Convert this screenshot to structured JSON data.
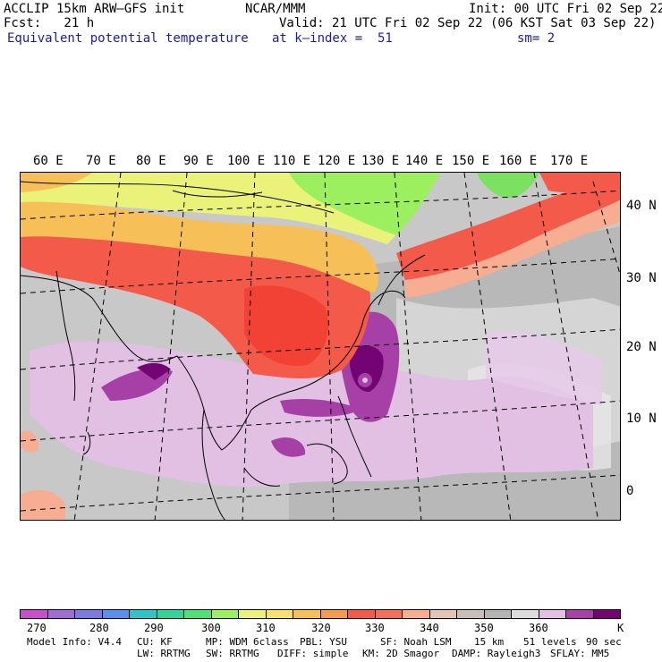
{
  "header": {
    "model": "ACCLIP 15km ARW–GFS init",
    "org": "NCAR/MMM",
    "init": "Init: 00 UTC Fri 02 Sep 22",
    "fcst": "Fcst:   21 h",
    "valid": "Valid: 21 UTC Fri 02 Sep 22 (06 KST Sat 03 Sep 22)",
    "field": "Equivalent potential temperature",
    "level": "at k–index =  51",
    "smooth": "sm= 2"
  },
  "map": {
    "lon_labels": [
      "60 E",
      "70 E",
      "80 E",
      "90 E",
      "100 E",
      "110 E",
      "120 E",
      "130 E",
      "140 E",
      "150 E",
      "160 E",
      "170 E"
    ],
    "lat_labels": [
      "40 N",
      "30 N",
      "20 N",
      "10 N",
      "0"
    ]
  },
  "colorbar": {
    "colors": [
      "#c74fc9",
      "#9f6ed4",
      "#7b7ae0",
      "#5c8ef0",
      "#2fc4c8",
      "#33d49a",
      "#4fe07a",
      "#9cf060",
      "#eaf27a",
      "#f8e070",
      "#f7bf58",
      "#f69a50",
      "#f45a4a",
      "#f26f5b",
      "#f6ad92",
      "#e4c4b4",
      "#c8bfb8",
      "#b4b4b4",
      "#dcdcdc",
      "#e2c0e4",
      "#a640a6",
      "#740474"
    ],
    "labels": [
      "270",
      "280",
      "290",
      "300",
      "310",
      "320",
      "330",
      "340",
      "350",
      "360",
      "K"
    ]
  },
  "footer": {
    "line1": [
      "Model Info: V4.4",
      "CU: KF",
      "MP: WDM 6class",
      "PBL: YSU",
      "SF: Noah LSM",
      "15 km",
      "51 levels",
      "90 sec"
    ],
    "line2": [
      "LW: RRTMG",
      "SW: RRTMG",
      "DIFF: simple",
      "KM: 2D Smagor",
      "DAMP: Rayleigh3",
      "SFLAY: MM5"
    ]
  }
}
